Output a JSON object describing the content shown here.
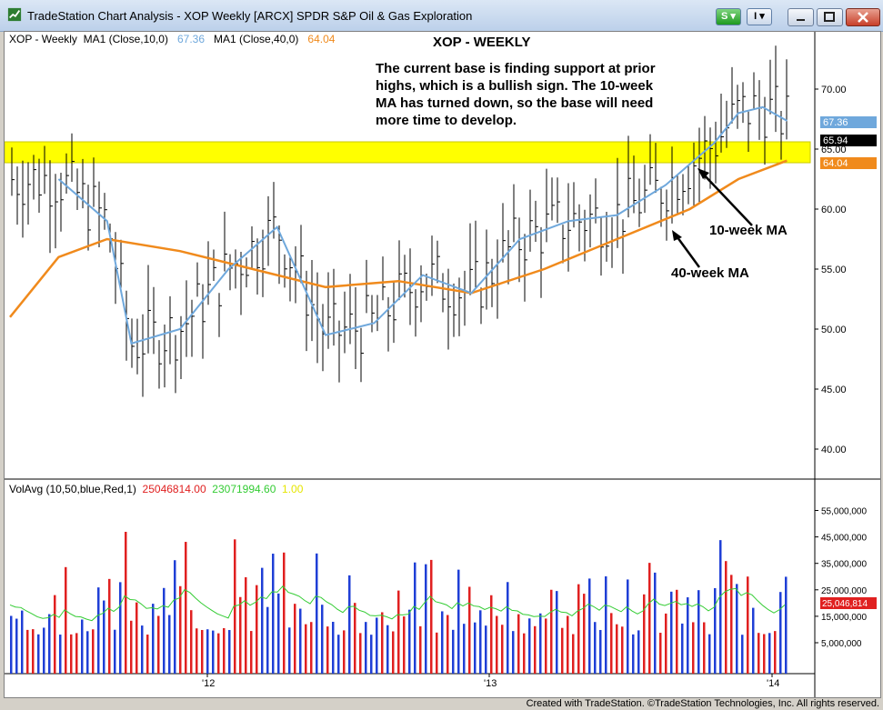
{
  "window": {
    "title": "TradeStation Chart Analysis - XOP Weekly [ARCX] SPDR S&P Oil & Gas Exploration",
    "s_button": "S",
    "i_button": "I"
  },
  "price_legend": {
    "symbol": "XOP - Weekly",
    "ma1_label": "MA1 (Close,10,0)",
    "ma1_value": "67.36",
    "ma2_label": "MA1 (Close,40,0)",
    "ma2_value": "64.04"
  },
  "annotation": {
    "title": "XOP - WEEKLY",
    "body": "The current base is finding support at prior highs, which is a bullish sign.  The 10-week MA has turned down, so the base will need more time to develop.",
    "label_10wk": "10-week MA",
    "label_40wk": "40-week MA"
  },
  "price_axis": {
    "ticks": [
      "70.00",
      "65.00",
      "60.00",
      "55.00",
      "50.00",
      "45.00",
      "40.00"
    ],
    "tags": {
      "ma10": "67.36",
      "last": "65.94",
      "ma40": "64.04"
    }
  },
  "volume_legend": {
    "label": "VolAvg (10,50,blue,Red,1)",
    "v1": "25046814.00",
    "v2": "23071994.60",
    "v3": "1.00"
  },
  "volume_axis": {
    "ticks": [
      "55,000,000",
      "45,000,000",
      "35,000,000",
      "25,000,000",
      "15,000,000",
      "5,000,000"
    ],
    "tag": "25,046,814"
  },
  "x_axis": {
    "ticks": [
      "'12",
      "'13",
      "'14"
    ]
  },
  "footer": "Created with TradeStation. ©TradeStation Technologies, Inc. All rights reserved.",
  "colors": {
    "ma10": "#6fa8dc",
    "ma40": "#f08a1c",
    "support_band": "#ffff00",
    "vol_up": "#1f3fd6",
    "vol_down": "#e02020",
    "vol_avg": "#33cc33"
  },
  "chart_data": [
    {
      "type": "line",
      "title": "XOP - WEEKLY",
      "series": [
        {
          "name": "MA1 (Close,10,0)",
          "x": [
            "2011-07",
            "2011-09",
            "2011-10",
            "2011-12",
            "2012-02",
            "2012-04",
            "2012-06",
            "2012-08",
            "2012-10",
            "2012-12",
            "2013-02",
            "2013-04",
            "2013-06",
            "2013-08",
            "2013-10",
            "2013-11",
            "2013-12",
            "2014-01"
          ],
          "values": [
            62.5,
            59.0,
            48.8,
            50.0,
            55.0,
            58.5,
            49.5,
            50.5,
            54.5,
            53.0,
            57.5,
            59.0,
            59.5,
            62.0,
            65.5,
            68.0,
            68.5,
            67.36
          ]
        },
        {
          "name": "MA1 (Close,40,0)",
          "x": [
            "2011-05",
            "2011-07",
            "2011-09",
            "2011-12",
            "2012-03",
            "2012-06",
            "2012-09",
            "2012-12",
            "2013-03",
            "2013-06",
            "2013-09",
            "2013-11",
            "2014-01"
          ],
          "values": [
            51.0,
            56.0,
            57.5,
            56.5,
            55.0,
            53.5,
            54.0,
            53.0,
            55.0,
            57.5,
            60.0,
            62.5,
            64.04
          ]
        }
      ],
      "annotations": [
        "support band 64.0 - 65.7"
      ],
      "ylim": [
        37,
        76
      ],
      "y_ticks": [
        40,
        45,
        50,
        55,
        60,
        65,
        70
      ]
    },
    {
      "type": "bar",
      "title": "VolAvg (10,50,blue,Red,1)",
      "y_ticks": [
        5000000,
        15000000,
        25000000,
        35000000,
        45000000,
        55000000
      ],
      "last_value": 25046814
    }
  ]
}
